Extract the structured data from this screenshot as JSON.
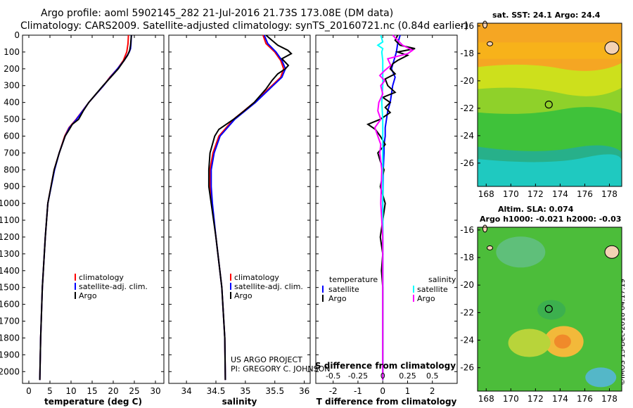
{
  "header": {
    "title_line1": "Argo profile: aoml 5902145_282 21-Jul-2016 21.73S 173.08E (DM data)",
    "title_line2": "Climatology: CARS2009. Satellite-adjusted climatology: synTS_20160721.nc (0.84d earlier)"
  },
  "maps": {
    "sst_label": "sat. SST: 24.1 Argo: 24.4",
    "sla_label": "Altim. SLA: 0.074",
    "height_label": "Argo h1000: -0.021 h2000: -0.03",
    "x_ticks": [
      "168",
      "170",
      "172",
      "174",
      "176",
      "178"
    ],
    "x_values": [
      168,
      170,
      172,
      174,
      176,
      178
    ],
    "y_ticks": [
      "-16",
      "-18",
      "-20",
      "-22",
      "-24",
      "-26"
    ],
    "y_values": [
      -16,
      -18,
      -20,
      -22,
      -24,
      -26
    ],
    "lon_range": [
      167.3,
      179
    ],
    "lat_range": [
      -27.7,
      -15.8
    ],
    "argo_position": {
      "lon": 173.08,
      "lat": -21.73
    }
  },
  "footer": {
    "project_line1": "US ARGO PROJECT",
    "project_line2": "PI: GREGORY C. JOHNSON",
    "stamp": "©IMOS 13-Dec-2018 04:17:19"
  },
  "chart_data": [
    {
      "type": "line",
      "title": "",
      "xlabel": "temperature (deg C)",
      "ylabel": "",
      "xlim": [
        -1.5,
        32
      ],
      "ylim": [
        2070,
        0
      ],
      "x_ticks": [
        0,
        5,
        10,
        15,
        20,
        25,
        30
      ],
      "y_ticks": [
        0,
        100,
        200,
        300,
        400,
        500,
        600,
        700,
        800,
        900,
        1000,
        1100,
        1200,
        1300,
        1400,
        1500,
        1600,
        1700,
        1800,
        1900,
        2000
      ],
      "y_tick_labels": [
        "0",
        "100",
        "200",
        "300",
        "400",
        "500",
        "600",
        "700",
        "800",
        "900",
        "1000",
        "1100",
        "1200",
        "1300",
        "1400",
        "1500",
        "1600",
        "1700",
        "1800",
        "1900",
        "2000"
      ],
      "legend": [
        "climatology",
        "satellite-adj. clim.",
        "Argo"
      ],
      "series": [
        {
          "name": "climatology",
          "color": "#ff0000",
          "depth": [
            0,
            50,
            100,
            150,
            200,
            250,
            300,
            400,
            500,
            550,
            600,
            700,
            800,
            1000,
            1200,
            1500,
            1800,
            2050
          ],
          "values": [
            23.6,
            23.5,
            23.2,
            22.4,
            21.0,
            19.2,
            17.7,
            14.2,
            11.2,
            9.5,
            8.5,
            7.2,
            6.0,
            4.5,
            3.9,
            3.2,
            2.8,
            2.6
          ]
        },
        {
          "name": "satellite-adj. clim.",
          "color": "#0000ff",
          "depth": [
            0,
            50,
            80,
            100,
            150,
            200,
            250,
            300,
            400,
            500,
            550,
            600,
            700,
            800,
            1000,
            1200,
            1500,
            1800,
            2050
          ],
          "values": [
            24.3,
            24.2,
            24.1,
            23.8,
            22.6,
            21.0,
            19.3,
            17.7,
            14.2,
            11.3,
            9.6,
            8.6,
            7.2,
            6.1,
            4.5,
            3.9,
            3.2,
            2.8,
            2.6
          ]
        },
        {
          "name": "Argo",
          "color": "#000000",
          "depth": [
            0,
            30,
            60,
            90,
            120,
            160,
            200,
            250,
            300,
            350,
            400,
            450,
            500,
            530,
            560,
            600,
            700,
            800,
            1000,
            1200,
            1500,
            1800,
            2050
          ],
          "values": [
            24.3,
            24.2,
            24.1,
            23.9,
            23.4,
            22.3,
            21.2,
            19.4,
            17.6,
            15.9,
            14.2,
            12.9,
            11.8,
            10.3,
            9.6,
            8.6,
            7.2,
            6.0,
            4.5,
            3.9,
            3.2,
            2.8,
            2.6
          ]
        }
      ]
    },
    {
      "type": "line",
      "xlabel": "salinity",
      "xlim": [
        33.7,
        36.1
      ],
      "ylim": [
        2070,
        0
      ],
      "x_ticks": [
        34,
        34.5,
        35,
        35.5,
        36
      ],
      "x_tick_labels": [
        "34",
        "34.5",
        "35",
        "35.5",
        "36"
      ],
      "legend": [
        "climatology",
        "satellite-adj. clim.",
        "Argo"
      ],
      "series": [
        {
          "name": "climatology",
          "color": "#ff0000",
          "depth": [
            0,
            50,
            100,
            150,
            200,
            250,
            300,
            400,
            500,
            600,
            700,
            800,
            900,
            1000,
            1200,
            1500,
            1800,
            2050
          ],
          "values": [
            35.3,
            35.35,
            35.5,
            35.6,
            35.65,
            35.6,
            35.45,
            35.15,
            34.8,
            34.55,
            34.45,
            34.4,
            34.4,
            34.43,
            34.5,
            34.6,
            34.65,
            34.66
          ]
        },
        {
          "name": "satellite-adj. clim.",
          "color": "#0000ff",
          "depth": [
            0,
            50,
            100,
            150,
            200,
            250,
            300,
            400,
            500,
            600,
            700,
            800,
            900,
            1000,
            1200,
            1500,
            1800,
            2050
          ],
          "values": [
            35.32,
            35.38,
            35.52,
            35.62,
            35.68,
            35.62,
            35.47,
            35.17,
            34.82,
            34.57,
            34.47,
            34.42,
            34.42,
            34.44,
            34.5,
            34.6,
            34.65,
            34.66
          ]
        },
        {
          "name": "Argo",
          "color": "#000000",
          "depth": [
            0,
            30,
            60,
            90,
            110,
            140,
            180,
            200,
            230,
            270,
            320,
            400,
            450,
            500,
            560,
            600,
            700,
            800,
            900,
            1000,
            1200,
            1500,
            1800,
            2050
          ],
          "values": [
            35.35,
            35.45,
            35.55,
            35.72,
            35.78,
            35.62,
            35.73,
            35.68,
            35.55,
            35.45,
            35.35,
            35.15,
            34.98,
            34.8,
            34.55,
            34.48,
            34.4,
            34.38,
            34.38,
            34.42,
            34.5,
            34.6,
            34.65,
            34.66
          ]
        }
      ]
    },
    {
      "type": "line",
      "xlabel": "T difference from climatology",
      "xlabel_top": "S difference from climatology",
      "xlim": [
        -2.7,
        3.0
      ],
      "xlim_salinity": [
        -0.675,
        0.75
      ],
      "ylim": [
        2070,
        0
      ],
      "x_ticks": [
        -2,
        -1,
        0,
        1,
        2
      ],
      "x_tick_labels": [
        "-2",
        "-1",
        "0",
        "1",
        "2"
      ],
      "top_ticks": [
        -0.5,
        -0.25,
        0,
        0.25,
        0.5
      ],
      "top_tick_labels": [
        "-0.5",
        "-0.25",
        "0",
        "0.25",
        "0.5"
      ],
      "legend_headers": [
        "temperature",
        "salinity"
      ],
      "legend": [
        "satellite",
        "Argo",
        "satellite",
        "Argo"
      ],
      "series": [
        {
          "name": "temperature satellite",
          "color": "#0000ff",
          "depth": [
            0,
            50,
            100,
            150,
            200,
            250,
            300,
            350,
            400,
            450,
            500,
            550,
            600,
            650,
            700,
            800,
            1000,
            1200,
            1500,
            1800,
            2050
          ],
          "values": [
            0.7,
            0.6,
            0.55,
            0.45,
            0.35,
            0.5,
            0.4,
            0.35,
            0.3,
            0.2,
            0.15,
            0.1,
            0.1,
            0.05,
            0.05,
            0.02,
            0,
            0,
            0,
            0,
            0
          ]
        },
        {
          "name": "temperature Argo",
          "color": "#000000",
          "depth": [
            0,
            30,
            60,
            80,
            100,
            120,
            150,
            170,
            200,
            230,
            260,
            300,
            340,
            370,
            400,
            430,
            460,
            500,
            530,
            560,
            600,
            650,
            700,
            750,
            800,
            900,
            1000,
            1100,
            1200,
            1300,
            1400,
            1500,
            1800,
            2050
          ],
          "values": [
            0.6,
            0.5,
            0.7,
            1.3,
            0.6,
            1.0,
            0.6,
            0.4,
            0.3,
            0.5,
            0.1,
            0.2,
            0.5,
            0.0,
            0.3,
            0.1,
            0.3,
            -0.1,
            -0.6,
            -0.3,
            -0.1,
            0.1,
            -0.2,
            -0.1,
            0.05,
            -0.1,
            0.1,
            0.0,
            -0.1,
            0.0,
            -0.05,
            0.0,
            0.0,
            0.0
          ]
        },
        {
          "name": "salinity satellite",
          "color": "#00ffff",
          "depth": [
            0,
            40,
            60,
            80,
            100,
            150,
            200,
            300,
            400,
            500,
            600,
            800,
            1000,
            1500,
            2050
          ],
          "values": [
            -0.02,
            0.0,
            -0.05,
            0.0,
            -0.01,
            0.0,
            0.0,
            0.0,
            -0.01,
            0.0,
            0.0,
            0.0,
            0.0,
            0.0,
            0.0
          ]
        },
        {
          "name": "salinity Argo",
          "color": "#ff00ff",
          "depth": [
            0,
            30,
            60,
            90,
            110,
            140,
            180,
            210,
            240,
            270,
            300,
            350,
            400,
            450,
            500,
            550,
            600,
            650,
            700,
            800,
            1000,
            1200,
            1500,
            1800,
            2050
          ],
          "values": [
            0.1,
            0.15,
            0.2,
            0.3,
            0.25,
            0.05,
            0.08,
            0.02,
            -0.03,
            0.02,
            -0.02,
            0.0,
            -0.04,
            -0.05,
            -0.02,
            -0.08,
            -0.05,
            -0.02,
            -0.03,
            -0.01,
            -0.02,
            0.0,
            0.0,
            0.0,
            0.0
          ]
        }
      ]
    }
  ]
}
